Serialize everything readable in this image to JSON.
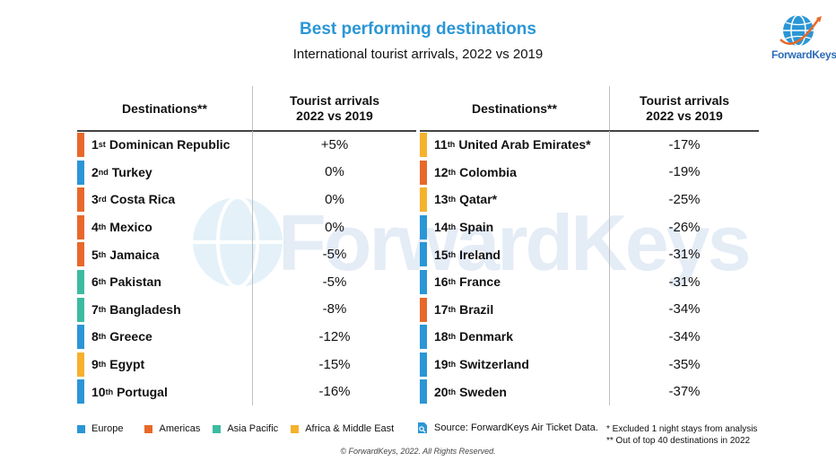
{
  "header": {
    "title": "Best performing destinations",
    "subtitle": "International tourist arrivals, 2022 vs 2019"
  },
  "logo": {
    "text": "ForwardKeys",
    "watermark_text": "ForwardKeys"
  },
  "columns": {
    "destinations": "Destinations**",
    "arrivals_line1": "Tourist arrivals",
    "arrivals_line2": "2022 vs 2019"
  },
  "regions": {
    "europe": {
      "label": "Europe",
      "color": "#2b96d6"
    },
    "americas": {
      "label": "Americas",
      "color": "#e8682a"
    },
    "asia": {
      "label": "Asia Pacific",
      "color": "#3dbba1"
    },
    "africa": {
      "label": "Africa & Middle East",
      "color": "#f6b12d"
    }
  },
  "left_rows": [
    {
      "rank": "1",
      "suffix": "st",
      "name": "Dominican Republic",
      "value": "+5%",
      "region": "americas"
    },
    {
      "rank": "2",
      "suffix": "nd",
      "name": "Turkey",
      "value": "0%",
      "region": "europe"
    },
    {
      "rank": "3",
      "suffix": "rd",
      "name": "Costa Rica",
      "value": "0%",
      "region": "americas"
    },
    {
      "rank": "4",
      "suffix": "th",
      "name": "Mexico",
      "value": "0%",
      "region": "americas"
    },
    {
      "rank": "5",
      "suffix": "th",
      "name": "Jamaica",
      "value": "-5%",
      "region": "americas"
    },
    {
      "rank": "6",
      "suffix": "th",
      "name": "Pakistan",
      "value": "-5%",
      "region": "asia"
    },
    {
      "rank": "7",
      "suffix": "th",
      "name": "Bangladesh",
      "value": "-8%",
      "region": "asia"
    },
    {
      "rank": "8",
      "suffix": "th",
      "name": "Greece",
      "value": "-12%",
      "region": "europe"
    },
    {
      "rank": "9",
      "suffix": "th",
      "name": "Egypt",
      "value": "-15%",
      "region": "africa"
    },
    {
      "rank": "10",
      "suffix": "th",
      "name": "Portugal",
      "value": "-16%",
      "region": "europe"
    }
  ],
  "right_rows": [
    {
      "rank": "11",
      "suffix": "th",
      "name": "United Arab Emirates*",
      "value": "-17%",
      "region": "africa"
    },
    {
      "rank": "12",
      "suffix": "th",
      "name": "Colombia",
      "value": "-19%",
      "region": "americas"
    },
    {
      "rank": "13",
      "suffix": "th",
      "name": "Qatar*",
      "value": "-25%",
      "region": "africa"
    },
    {
      "rank": "14",
      "suffix": "th",
      "name": "Spain",
      "value": "-26%",
      "region": "europe"
    },
    {
      "rank": "15",
      "suffix": "th",
      "name": "Ireland",
      "value": "-31%",
      "region": "europe"
    },
    {
      "rank": "16",
      "suffix": "th",
      "name": "France",
      "value": "-31%",
      "region": "europe"
    },
    {
      "rank": "17",
      "suffix": "th",
      "name": "Brazil",
      "value": "-34%",
      "region": "americas"
    },
    {
      "rank": "18",
      "suffix": "th",
      "name": "Denmark",
      "value": "-34%",
      "region": "europe"
    },
    {
      "rank": "19",
      "suffix": "th",
      "name": "Switzerland",
      "value": "-35%",
      "region": "europe"
    },
    {
      "rank": "20",
      "suffix": "th",
      "name": "Sweden",
      "value": "-37%",
      "region": "europe"
    }
  ],
  "footer": {
    "source": "Source: ForwardKeys Air Ticket Data.",
    "note1": "* Excluded 1 night stays from analysis",
    "note2": "** Out of top 40 destinations in 2022",
    "copyright": "© ForwardKeys, 2022. All Rights Reserved."
  }
}
